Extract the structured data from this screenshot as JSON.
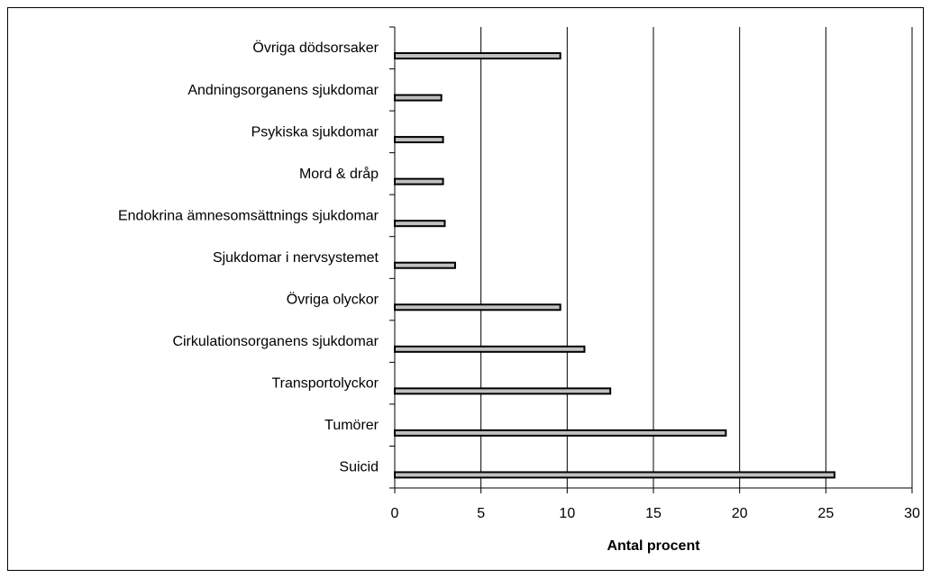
{
  "chart_data": {
    "type": "hbar",
    "x_label": "Antal procent",
    "categories": [
      "Övriga dödsorsaker",
      "Andningsorganens sjukdomar",
      "Psykiska sjukdomar",
      "Mord & dråp",
      "Endokrina ämnesomsättnings sjukdomar",
      "Sjukdomar i nervsystemet",
      "Övriga olyckor",
      "Cirkulationsorganens sjukdomar",
      "Transportolyckor",
      "Tumörer",
      "Suicid"
    ],
    "values": [
      9.6,
      2.7,
      2.8,
      2.8,
      2.9,
      3.5,
      9.6,
      11.0,
      12.5,
      19.2,
      25.5
    ],
    "color": "#c0c0c0",
    "xlim": [
      0,
      30
    ],
    "xticks": [
      0,
      5,
      10,
      15,
      20,
      25,
      30
    ],
    "grid": true
  }
}
